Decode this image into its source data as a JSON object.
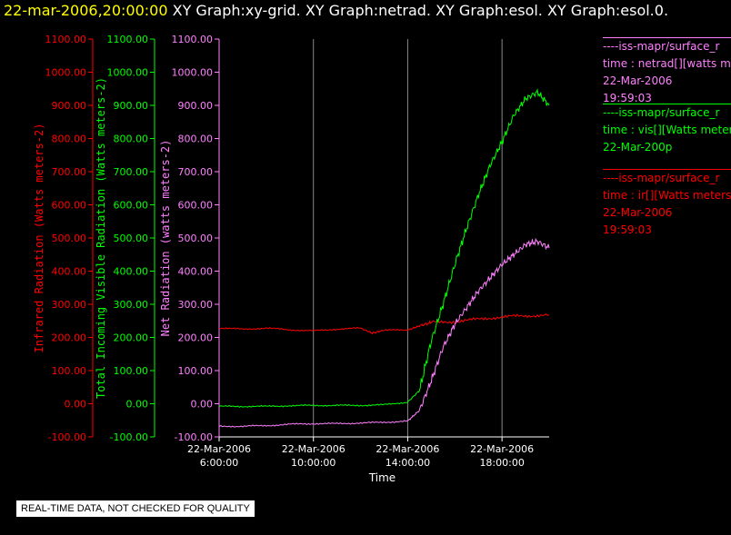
{
  "header": {
    "time": "22-mar-2006,20:00:00",
    "graphs": "XY Graph:xy-grid.  XY Graph:netrad.  XY Graph:esol.  XY Graph:esol.0."
  },
  "legend": [
    {
      "source": "----iss-mapr/surface_r",
      "var": "time : netrad[][watts m",
      "date": "22-Mar-2006",
      "time": "19:59:03",
      "color": "#ff80ff"
    },
    {
      "source": "----iss-mapr/surface_r",
      "var": "time : vis[][Watts meter",
      "date": "22-Mar-200p",
      "time": "",
      "color": "#00ff00"
    },
    {
      "source": "----iss-mapr/surface_r",
      "var": "time : ir[][Watts meters",
      "date": "22-Mar-2006",
      "time": "19:59:03",
      "color": "#ff0000"
    }
  ],
  "footer": {
    "qc_notice": "REAL-TIME DATA, NOT CHECKED FOR QUALITY"
  },
  "chart_data": {
    "type": "line",
    "xlabel": "Time",
    "x_ticks": [
      {
        "date": "22-Mar-2006",
        "time": "6:00:00",
        "hour": 6
      },
      {
        "date": "22-Mar-2006",
        "time": "10:00:00",
        "hour": 10
      },
      {
        "date": "22-Mar-2006",
        "time": "14:00:00",
        "hour": 14
      },
      {
        "date": "22-Mar-2006",
        "time": "18:00:00",
        "hour": 18
      }
    ],
    "xlim_hours": [
      6,
      20
    ],
    "ylim": [
      -100,
      1100
    ],
    "y_ticks": [
      "-100.00",
      "0.00",
      "100.00",
      "200.00",
      "300.00",
      "400.00",
      "500.00",
      "600.00",
      "700.00",
      "800.00",
      "900.00",
      "1000.00",
      "1100.00"
    ],
    "grid": "vertical at x ticks",
    "axes": [
      {
        "label": "Infrared Radiation (Watts meters-2)",
        "color": "#ff0000"
      },
      {
        "label": "Total Incoming Visible Radiation (Watts meters-2)",
        "color": "#00ff00"
      },
      {
        "label": "Net Radiation (watts meters-2)",
        "color": "#ff80ff"
      }
    ],
    "series": [
      {
        "color": "#ff0000",
        "points": [
          [
            6,
            228
          ],
          [
            7,
            225
          ],
          [
            8,
            228
          ],
          [
            9,
            223
          ],
          [
            10,
            220
          ],
          [
            11,
            225
          ],
          [
            12,
            228
          ],
          [
            12.5,
            213
          ],
          [
            13,
            222
          ],
          [
            14,
            222
          ],
          [
            14.5,
            235
          ],
          [
            15,
            245
          ],
          [
            16,
            248
          ],
          [
            17,
            255
          ],
          [
            18,
            262
          ],
          [
            19,
            265
          ],
          [
            20,
            268
          ]
        ]
      },
      {
        "color": "#00ff00",
        "points": [
          [
            6,
            -8
          ],
          [
            7,
            -8
          ],
          [
            8,
            -8
          ],
          [
            9,
            -6
          ],
          [
            10,
            -5
          ],
          [
            11,
            -5
          ],
          [
            12,
            -5
          ],
          [
            13,
            -3
          ],
          [
            14,
            5
          ],
          [
            14.5,
            40
          ],
          [
            15,
            190
          ],
          [
            15.5,
            300
          ],
          [
            16,
            420
          ],
          [
            16.5,
            530
          ],
          [
            17,
            630
          ],
          [
            17.5,
            720
          ],
          [
            18,
            790
          ],
          [
            18.5,
            870
          ],
          [
            19,
            920
          ],
          [
            19.5,
            940
          ],
          [
            20,
            900
          ]
        ]
      },
      {
        "color": "#ff80ff",
        "points": [
          [
            6,
            -68
          ],
          [
            7,
            -68
          ],
          [
            8,
            -66
          ],
          [
            9,
            -62
          ],
          [
            10,
            -60
          ],
          [
            11,
            -60
          ],
          [
            12,
            -58
          ],
          [
            13,
            -56
          ],
          [
            14,
            -52
          ],
          [
            14.5,
            -20
          ],
          [
            15,
            70
          ],
          [
            15.5,
            170
          ],
          [
            16,
            240
          ],
          [
            16.5,
            290
          ],
          [
            17,
            340
          ],
          [
            17.5,
            380
          ],
          [
            18,
            420
          ],
          [
            18.5,
            450
          ],
          [
            19,
            480
          ],
          [
            19.5,
            490
          ],
          [
            20,
            470
          ]
        ]
      }
    ]
  }
}
